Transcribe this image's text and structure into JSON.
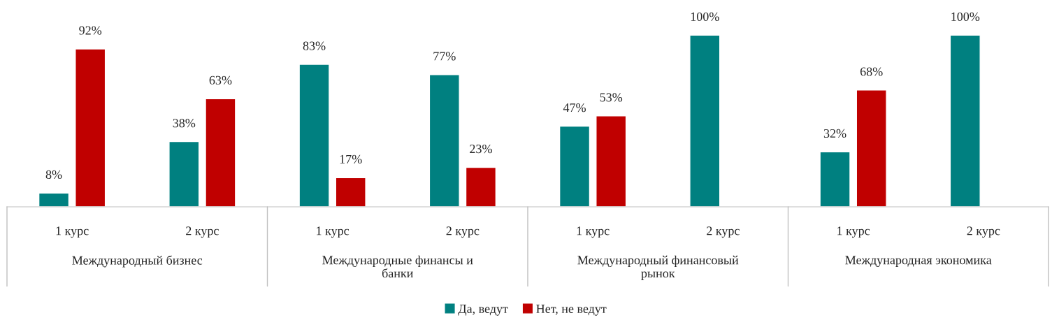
{
  "chart_data": {
    "type": "bar",
    "categories": [
      "1 курс",
      "2 курс",
      "1 курс",
      "2 курс",
      "1 курс",
      "2 курс",
      "1 курс",
      "2 курс"
    ],
    "series": [
      {
        "name": "Да, ведут",
        "color": "#008080",
        "values": [
          8,
          38,
          83,
          77,
          47,
          100,
          32,
          100
        ],
        "value_labels": [
          "8%",
          "38%",
          "83%",
          "77%",
          "47%",
          "100%",
          "32%",
          "100%"
        ]
      },
      {
        "name": "Нет, не ведут",
        "color": "#c00000",
        "values": [
          92,
          63,
          17,
          23,
          53,
          null,
          68,
          null
        ],
        "value_labels": [
          "92%",
          "63%",
          "17%",
          "23%",
          "53%",
          null,
          "68%",
          null
        ]
      }
    ],
    "annotations": [
      "Международный бизнес",
      "Международные финансы и\nбанки",
      "Международный финансовый\nрынок",
      "Международная экономика"
    ],
    "tick_labels": "x",
    "grid": false,
    "legend": "bottom"
  }
}
